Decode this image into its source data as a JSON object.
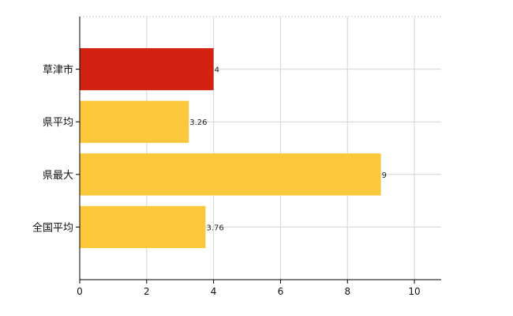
{
  "chart_data": {
    "type": "bar",
    "orientation": "horizontal",
    "categories": [
      "草津市",
      "県平均",
      "県最大",
      "全国平均"
    ],
    "values": [
      4,
      3.26,
      9,
      3.76
    ],
    "data_labels": [
      "4",
      "3.26",
      "9",
      "3.76"
    ],
    "bar_colors": [
      "#d42212",
      "#fbc83b",
      "#fbc83b",
      "#fbc83b"
    ],
    "xlim": [
      0,
      10.8
    ],
    "xticks": [
      0,
      2,
      4,
      6,
      8,
      10
    ],
    "xtick_labels": [
      "0",
      "2",
      "4",
      "6",
      "8",
      "10"
    ],
    "grid": true,
    "title": "",
    "xlabel": "",
    "ylabel": ""
  }
}
